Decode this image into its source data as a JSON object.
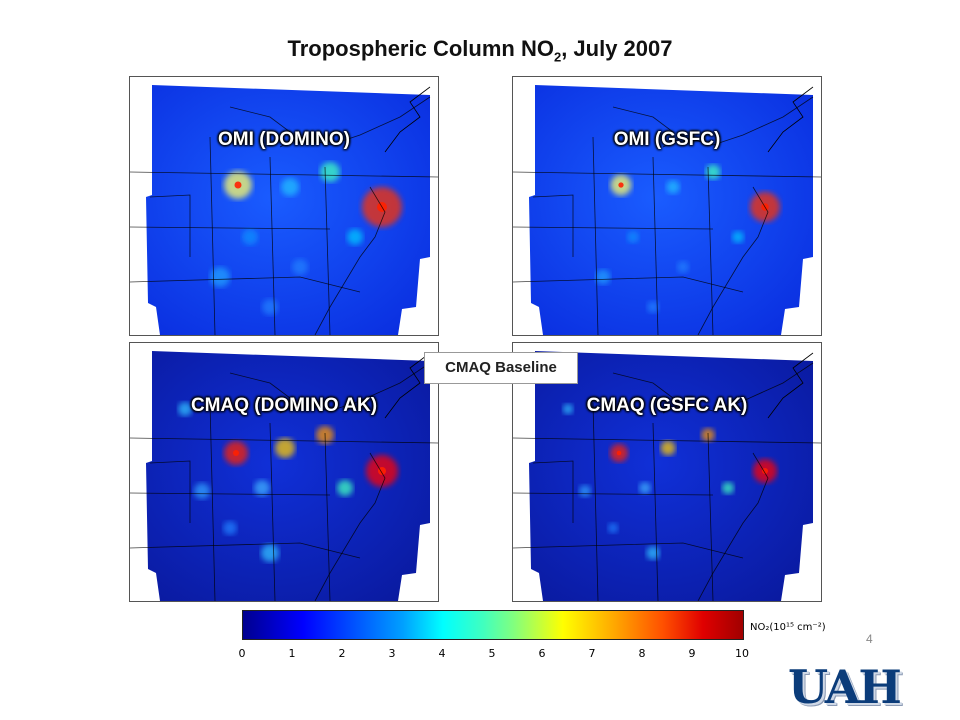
{
  "title": {
    "main": "Tropospheric Column NO",
    "subscript": "2",
    "suffix": ", July 2007"
  },
  "panels": [
    {
      "label": "OMI (DOMINO)"
    },
    {
      "label": "OMI (GSFC)"
    },
    {
      "label": "CMAQ (DOMINO AK)"
    },
    {
      "label": "CMAQ (GSFC AK)"
    }
  ],
  "baseline_label": "CMAQ Baseline",
  "colorbar": {
    "title": "NO₂(10¹⁵ cm⁻²)",
    "ticks": [
      "0",
      "1",
      "2",
      "3",
      "4",
      "5",
      "6",
      "7",
      "8",
      "9",
      "10"
    ],
    "range": [
      0,
      10
    ]
  },
  "page_number": "4",
  "logo_text": "UAH"
}
